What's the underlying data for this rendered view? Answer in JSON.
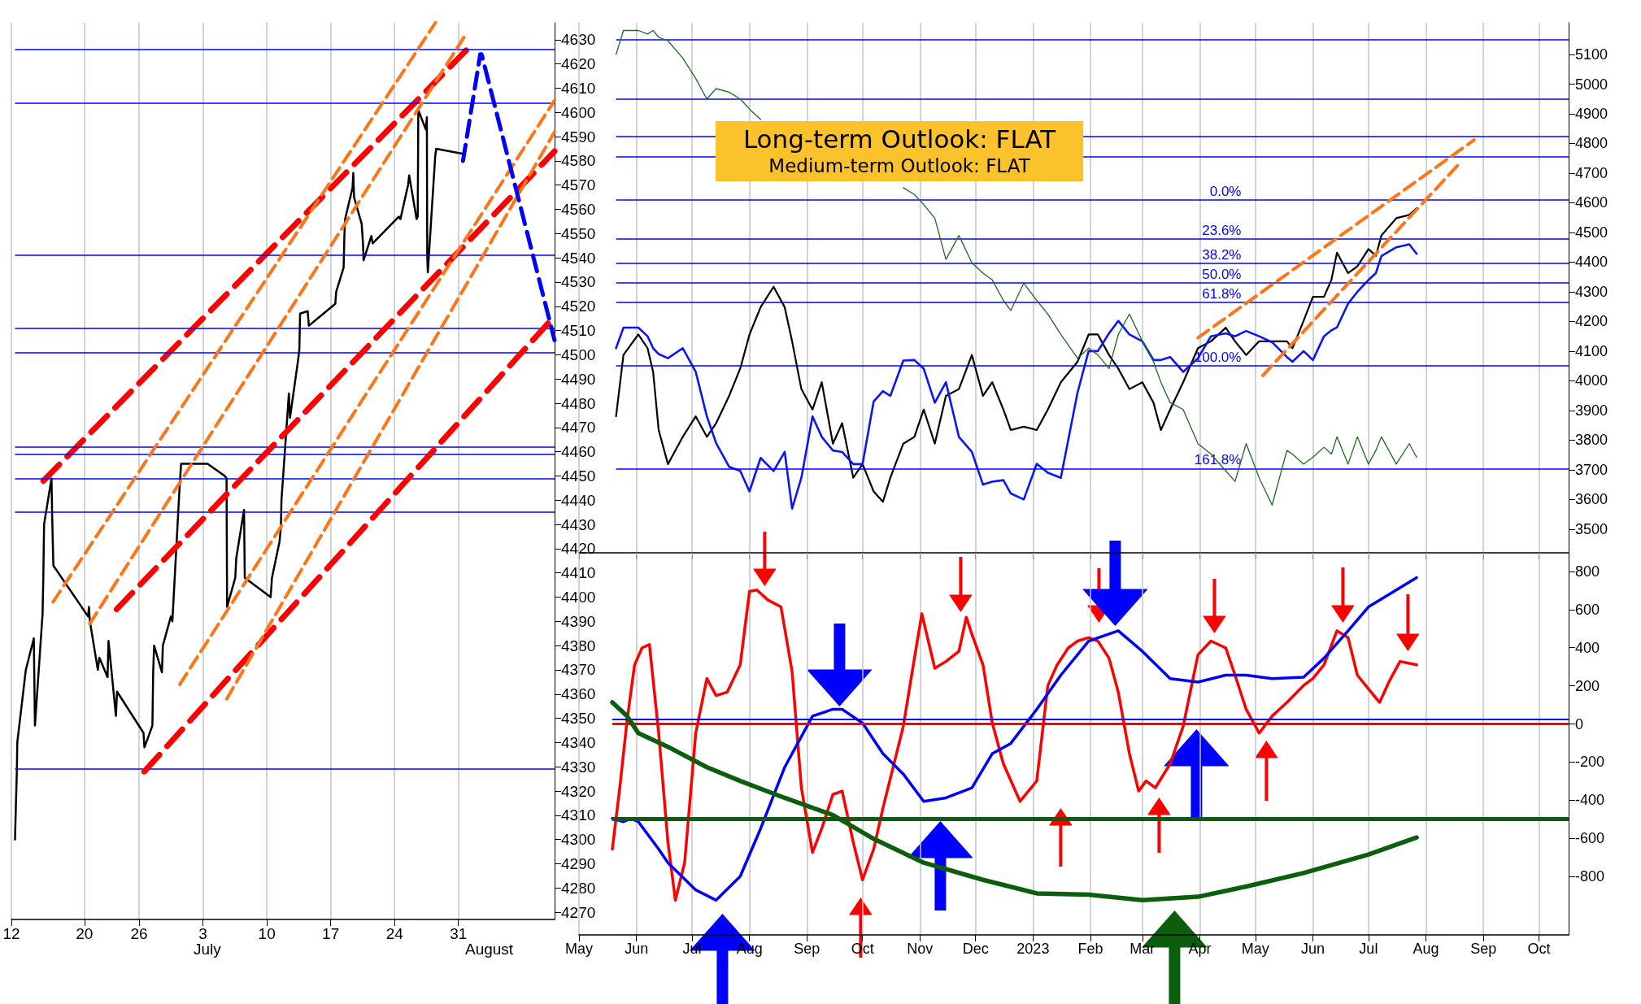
{
  "chart_data": [
    {
      "type": "line",
      "xlim": [
        "2023-06-12",
        "2023-08-10T13:00"
      ],
      "ylim": [
        4267,
        4637
      ],
      "grid": "x",
      "xticks": [
        {
          "value": "2023-06-12",
          "label": "12"
        },
        {
          "value": "2023-06-20",
          "label": "20"
        },
        {
          "value": "2023-06-26",
          "label": "26"
        },
        {
          "value": "2023-07-03",
          "label": "3"
        },
        {
          "value": "2023-07-10",
          "label": "10"
        },
        {
          "value": "2023-07-17",
          "label": "17"
        },
        {
          "value": "2023-07-24",
          "label": "24"
        },
        {
          "value": "2023-07-31",
          "label": "31"
        }
      ],
      "yticks": [
        4270,
        4280,
        4290,
        4300,
        4310,
        4320,
        4330,
        4340,
        4350,
        4360,
        4370,
        4380,
        4390,
        4400,
        4410,
        4420,
        4430,
        4440,
        4450,
        4460,
        4470,
        4480,
        4490,
        4500,
        4510,
        4520,
        4530,
        4540,
        4550,
        4560,
        4570,
        4580,
        4590,
        4600,
        4610,
        4620,
        4630
      ],
      "annotations": [
        "July",
        "August"
      ],
      "ref_lines": [
        {
          "axis": "y",
          "value": 4626,
          "color": "#0000ff"
        },
        {
          "axis": "y",
          "value": 4604,
          "color": "#0000ff"
        },
        {
          "axis": "y",
          "value": 4541,
          "color": "#0000ff"
        },
        {
          "axis": "y",
          "value": 4511,
          "color": "#0000ff"
        },
        {
          "axis": "y",
          "value": 4501,
          "color": "#0000ff"
        },
        {
          "axis": "y",
          "value": 4462,
          "color": "#0000ff"
        },
        {
          "axis": "y",
          "value": 4459,
          "color": "#0000ff"
        },
        {
          "axis": "y",
          "value": 4449,
          "color": "#0000ff"
        },
        {
          "axis": "y",
          "value": 4435,
          "color": "#0000ff"
        },
        {
          "axis": "y",
          "value": 4329,
          "color": "#0000ff"
        }
      ],
      "series": [
        {
          "color": "#000000",
          "x": [
            "2023-06-12T09:30",
            "2023-06-12T11:30",
            "2023-06-12T14:30",
            "2023-06-12T15:30",
            "2023-06-13T09:30",
            "2023-06-13T14:00",
            "2023-06-14T11:00",
            "2023-06-14T14:00",
            "2023-06-15T10:00",
            "2023-06-15T12:00",
            "2023-06-15T14:00",
            "2023-06-16T09:30",
            "2023-06-16T11:30",
            "2023-06-16T14:30",
            "2023-06-20T10:00",
            "2023-06-20T12:00",
            "2023-06-20T14:30",
            "2023-06-21T11:30",
            "2023-06-21T15:30",
            "2023-06-22T13:00",
            "2023-06-22T15:30",
            "2023-06-23T11:00",
            "2023-06-23T14:00",
            "2023-06-26T11:30",
            "2023-06-26T14:00",
            "2023-06-27T11:00",
            "2023-06-27T13:00",
            "2023-06-27T15:30",
            "2023-06-28T12:00",
            "2023-06-28T14:30",
            "2023-06-29T11:30",
            "2023-06-29T15:30",
            "2023-06-30T10:00",
            "2023-06-30T14:30",
            "2023-07-03T12:00",
            "2023-07-05T09:30",
            "2023-07-05T14:00",
            "2023-07-05T15:30",
            "2023-07-06T13:00",
            "2023-07-06T15:30",
            "2023-07-07T12:00",
            "2023-07-07T14:00",
            "2023-07-10T10:00",
            "2023-07-10T13:30",
            "2023-07-11T09:30",
            "2023-07-11T13:00",
            "2023-07-11T14:30",
            "2023-07-12T10:00",
            "2023-07-12T13:00",
            "2023-07-13T09:30",
            "2023-07-13T13:30",
            "2023-07-13T15:30",
            "2023-07-14T11:30",
            "2023-07-14T14:30",
            "2023-07-17T12:00",
            "2023-07-17T14:30",
            "2023-07-18T10:00",
            "2023-07-18T12:00",
            "2023-07-18T14:00",
            "2023-07-19T09:30",
            "2023-07-19T11:30",
            "2023-07-19T13:30",
            "2023-07-20T09:30",
            "2023-07-20T13:00",
            "2023-07-20T14:30",
            "2023-07-21T11:00",
            "2023-07-21T14:30",
            "2023-07-24T11:30",
            "2023-07-24T15:30",
            "2023-07-25T11:30",
            "2023-07-25T14:30",
            "2023-07-26T10:00",
            "2023-07-26T13:00",
            "2023-07-26T14:30",
            "2023-07-27T10:00",
            "2023-07-27T13:00",
            "2023-07-27T14:00",
            "2023-07-27T15:30",
            "2023-07-28T11:00",
            "2023-07-28T13:30",
            "2023-07-31T10:00"
          ],
          "values": [
            4300,
            4312,
            4329,
            4340,
            4364,
            4370,
            4383,
            4347,
            4393,
            4408,
            4430,
            4449,
            4432,
            4413,
            4392,
            4396,
            4390,
            4370,
            4375,
            4367,
            4382,
            4351,
            4361,
            4344,
            4338,
            4347,
            4369,
            4380,
            4369,
            4380,
            4392,
            4390,
            4444,
            4455,
            4455,
            4450,
            4449,
            4396,
            4408,
            4416,
            4436,
            4408,
            4400,
            4408,
            4423,
            4429,
            4440,
            4484,
            4474,
            4497,
            4502,
            4517,
            4518,
            4512,
            4521,
            4526,
            4536,
            4549,
            4556,
            4569,
            4575,
            4565,
            4554,
            4546,
            4539,
            4549,
            4546,
            4557,
            4556,
            4570,
            4574,
            4556,
            4557,
            4601,
            4593,
            4598,
            4541,
            4534,
            4582,
            4585,
            4583
          ]
        },
        {
          "color": "#ff0000",
          "line_style": "dashed",
          "x": [
            "2023-06-15T12:00",
            "2023-08-01T11:30"
          ],
          "values": [
            4448,
            4628
          ]
        },
        {
          "color": "#ff0000",
          "line_style": "dashed",
          "x": [
            "2023-06-23T13:00",
            "2023-08-10T13:00"
          ],
          "values": [
            4395,
            4584
          ]
        },
        {
          "color": "#ff0000",
          "line_style": "dashed",
          "x": [
            "2023-06-26T13:30",
            "2023-08-10T13:00"
          ],
          "values": [
            4328,
            4516
          ]
        },
        {
          "color": "#ff7518",
          "line_style": "dashed",
          "x": [
            "2023-06-16T13:30",
            "2023-07-28T11:30"
          ],
          "values": [
            4398,
            4637
          ]
        },
        {
          "color": "#ff7518",
          "line_style": "dashed",
          "x": [
            "2023-06-20T14:00",
            "2023-07-31T14:30"
          ],
          "values": [
            4389,
            4631
          ]
        },
        {
          "color": "#ff7518",
          "line_style": "dashed",
          "x": [
            "2023-06-30T11:00",
            "2023-08-10T13:00"
          ],
          "values": [
            4364,
            4605
          ]
        },
        {
          "color": "#ff7518",
          "line_style": "dashed",
          "x": [
            "2023-07-05T14:30",
            "2023-08-10T13:00"
          ],
          "values": [
            4358,
            4592
          ]
        },
        {
          "color": "#0000ff",
          "line_style": "dashed",
          "x": [
            "2023-07-31T12:00",
            "2023-08-02T09:30",
            "2023-08-02T13:00",
            "2023-08-10T13:00"
          ],
          "values": [
            4580,
            4624,
            4624,
            4506
          ]
        }
      ]
    },
    {
      "type": "line",
      "title": "Long-term Outlook: FLAT",
      "subtitle": "Medium-term Outlook: FLAT",
      "xlim": [
        "2022-05-01",
        "2023-10-17"
      ],
      "ylim": [
        3420,
        5207
      ],
      "grid": "x",
      "tick_labels": "y",
      "xticks": [
        {
          "value": "2022-05-01",
          "label": null
        },
        {
          "value": "2022-06-01",
          "label": null
        },
        {
          "value": "2022-07-01",
          "label": null
        },
        {
          "value": "2022-08-01",
          "label": null
        },
        {
          "value": "2022-09-01",
          "label": null
        },
        {
          "value": "2022-10-01",
          "label": null
        },
        {
          "value": "2022-11-01",
          "label": null
        },
        {
          "value": "2022-12-01",
          "label": null
        },
        {
          "value": "2023-01-01",
          "label": null
        },
        {
          "value": "2023-02-01",
          "label": null
        },
        {
          "value": "2023-03-01",
          "label": null
        },
        {
          "value": "2023-04-01",
          "label": null
        },
        {
          "value": "2023-05-01",
          "label": null
        },
        {
          "value": "2023-06-01",
          "label": null
        },
        {
          "value": "2023-07-01",
          "label": null
        },
        {
          "value": "2023-08-01",
          "label": null
        },
        {
          "value": "2023-09-01",
          "label": null
        },
        {
          "value": "2023-10-01",
          "label": null
        }
      ],
      "yticks": [
        3500,
        3600,
        3700,
        3800,
        3900,
        4000,
        4100,
        4200,
        4300,
        4400,
        4500,
        4600,
        4700,
        4800,
        4900,
        5000,
        5100
      ],
      "annotations": [
        {
          "text": "0.0%",
          "x": "2023-04-26",
          "y": 4610
        },
        {
          "text": "23.6%",
          "x": "2023-04-26",
          "y": 4478
        },
        {
          "text": "38.2%",
          "x": "2023-04-26",
          "y": 4396
        },
        {
          "text": "50.0%",
          "x": "2023-04-26",
          "y": 4330
        },
        {
          "text": "61.8%",
          "x": "2023-04-26",
          "y": 4264
        },
        {
          "text": "100.0%",
          "x": "2023-04-26",
          "y": 4050
        },
        {
          "text": "161.8%",
          "x": "2023-04-26",
          "y": 3704
        }
      ],
      "ref_lines": [
        {
          "axis": "y",
          "value": 5150,
          "color": "#0000ff"
        },
        {
          "axis": "y",
          "value": 4950,
          "color": "#0000ff"
        },
        {
          "axis": "y",
          "value": 4825,
          "color": "#0000ff"
        },
        {
          "axis": "y",
          "value": 4755,
          "color": "#0000ff"
        },
        {
          "axis": "y",
          "value": 4610,
          "color": "#0000ff"
        },
        {
          "axis": "y",
          "value": 4478,
          "color": "#0000ff"
        },
        {
          "axis": "y",
          "value": 4396,
          "color": "#0000ff"
        },
        {
          "axis": "y",
          "value": 4330,
          "color": "#0000ff"
        },
        {
          "axis": "y",
          "value": 4264,
          "color": "#0000ff"
        },
        {
          "axis": "y",
          "value": 4050,
          "color": "#0000ff"
        },
        {
          "axis": "y",
          "value": 3704,
          "color": "#0000ff"
        }
      ],
      "series": [
        {
          "color": "#000000",
          "x": [
            "2022-05-21",
            "2022-05-25",
            "2022-06-02",
            "2022-06-07",
            "2022-06-10",
            "2022-06-13",
            "2022-06-18",
            "2022-06-26",
            "2022-07-03",
            "2022-07-09",
            "2022-07-14",
            "2022-07-21",
            "2022-07-27",
            "2022-08-01",
            "2022-08-07",
            "2022-08-14",
            "2022-08-20",
            "2022-08-24",
            "2022-08-29",
            "2022-09-04",
            "2022-09-09",
            "2022-09-15",
            "2022-09-20",
            "2022-09-26",
            "2022-10-01",
            "2022-10-07",
            "2022-10-12",
            "2022-10-16",
            "2022-10-23",
            "2022-10-29",
            "2022-11-03",
            "2022-11-09",
            "2022-11-15",
            "2022-11-22",
            "2022-11-29",
            "2022-12-05",
            "2022-12-10",
            "2022-12-16",
            "2022-12-20",
            "2022-12-27",
            "2023-01-03",
            "2023-01-09",
            "2023-01-16",
            "2023-01-25",
            "2023-01-31",
            "2023-02-05",
            "2023-02-11",
            "2023-02-16",
            "2023-02-22",
            "2023-03-01",
            "2023-03-07",
            "2023-03-11",
            "2023-03-16",
            "2023-03-23",
            "2023-03-31",
            "2023-04-07",
            "2023-04-15",
            "2023-04-20",
            "2023-04-26",
            "2023-05-03",
            "2023-05-10",
            "2023-05-18",
            "2023-05-21",
            "2023-05-27",
            "2023-06-01",
            "2023-06-07",
            "2023-06-11",
            "2023-06-14",
            "2023-06-20",
            "2023-06-25",
            "2023-07-01",
            "2023-07-05",
            "2023-07-08",
            "2023-07-16",
            "2023-07-23",
            "2023-07-27"
          ],
          "values": [
            3880,
            4087,
            4156,
            4110,
            4030,
            3834,
            3719,
            3811,
            3880,
            3811,
            3857,
            3949,
            4041,
            4156,
            4248,
            4317,
            4248,
            4133,
            3972,
            3903,
            3995,
            3788,
            3857,
            3673,
            3719,
            3627,
            3592,
            3673,
            3788,
            3811,
            3903,
            3788,
            3949,
            3972,
            4087,
            3949,
            3995,
            3903,
            3834,
            3845,
            3834,
            3903,
            3995,
            4064,
            4156,
            4156,
            4087,
            4041,
            3972,
            3995,
            3926,
            3834,
            3903,
            3995,
            4110,
            4133,
            4179,
            4133,
            4087,
            4133,
            4133,
            4133,
            4110,
            4202,
            4283,
            4283,
            4340,
            4432,
            4363,
            4386,
            4444,
            4421,
            4490,
            4548,
            4559,
            4582
          ]
        },
        {
          "color": "#0a14ff",
          "x": [
            "2022-05-21",
            "2022-05-25",
            "2022-06-02",
            "2022-06-07",
            "2022-06-10",
            "2022-06-13",
            "2022-06-18",
            "2022-06-26",
            "2022-07-03",
            "2022-07-09",
            "2022-07-14",
            "2022-07-21",
            "2022-07-27",
            "2022-08-01",
            "2022-08-07",
            "2022-08-14",
            "2022-08-20",
            "2022-08-24",
            "2022-08-29",
            "2022-09-04",
            "2022-09-09",
            "2022-09-15",
            "2022-09-20",
            "2022-09-26",
            "2022-10-01",
            "2022-10-07",
            "2022-10-12",
            "2022-10-16",
            "2022-10-23",
            "2022-10-29",
            "2022-11-03",
            "2022-11-09",
            "2022-11-15",
            "2022-11-22",
            "2022-11-29",
            "2022-12-05",
            "2022-12-10",
            "2022-12-16",
            "2022-12-20",
            "2022-12-27",
            "2023-01-03",
            "2023-01-09",
            "2023-01-16",
            "2023-01-25",
            "2023-01-31",
            "2023-02-05",
            "2023-02-11",
            "2023-02-16",
            "2023-02-22",
            "2023-03-01",
            "2023-03-07",
            "2023-03-11",
            "2023-03-16",
            "2023-03-23",
            "2023-03-31",
            "2023-04-07",
            "2023-04-15",
            "2023-04-20",
            "2023-04-26",
            "2023-05-03",
            "2023-05-10",
            "2023-05-18",
            "2023-05-21",
            "2023-05-27",
            "2023-06-01",
            "2023-06-07",
            "2023-06-11",
            "2023-06-14",
            "2023-06-20",
            "2023-06-25",
            "2023-07-01",
            "2023-07-05",
            "2023-07-08",
            "2023-07-16",
            "2023-07-23",
            "2023-07-27"
          ],
          "values": [
            4110,
            4179,
            4179,
            4150,
            4110,
            4090,
            4076,
            4110,
            4030,
            3880,
            3790,
            3710,
            3696,
            3627,
            3740,
            3696,
            3760,
            3569,
            3673,
            3880,
            3811,
            3765,
            3760,
            3719,
            3719,
            3930,
            3965,
            3949,
            4068,
            4070,
            4041,
            3926,
            3995,
            3811,
            3760,
            3650,
            3660,
            3665,
            3620,
            3600,
            3720,
            3690,
            3673,
            3960,
            4100,
            4100,
            4160,
            4202,
            4156,
            4133,
            4070,
            4070,
            4080,
            4030,
            4076,
            4150,
            4160,
            4150,
            4168,
            4150,
            4130,
            4080,
            4064,
            4100,
            4070,
            4150,
            4170,
            4180,
            4260,
            4300,
            4340,
            4363,
            4421,
            4450,
            4460,
            4428
          ]
        },
        {
          "color": "#1e6b1e",
          "x": [
            "2022-05-21",
            "2022-05-25",
            "2022-06-02",
            "2022-06-07",
            "2022-06-10",
            "2022-06-13",
            "2022-06-18",
            "2022-06-26",
            "2022-07-03",
            "2022-07-09",
            "2022-07-14",
            "2022-07-21",
            "2022-07-27",
            "2022-08-01",
            "2022-08-07",
            "2022-08-14",
            "2022-08-20",
            "2022-08-24",
            "2022-08-29",
            "2022-09-04",
            "2022-09-09",
            "2022-09-15",
            "2022-09-20",
            "2022-09-26",
            "2022-10-01",
            "2022-10-07",
            "2022-10-12",
            "2022-10-16",
            "2022-10-23",
            "2022-10-29",
            "2022-11-03",
            "2022-11-09",
            "2022-11-15",
            "2022-11-22",
            "2022-11-29",
            "2022-12-05",
            "2022-12-10",
            "2022-12-16",
            "2022-12-20",
            "2022-12-27",
            "2023-01-03",
            "2023-01-09",
            "2023-01-16",
            "2023-01-25",
            "2023-01-31",
            "2023-02-05",
            "2023-02-11",
            "2023-02-16",
            "2023-02-22",
            "2023-03-01",
            "2023-03-07",
            "2023-03-11",
            "2023-03-16",
            "2023-03-23",
            "2023-03-31",
            "2023-04-07",
            "2023-04-15",
            "2023-04-20",
            "2023-04-26",
            "2023-05-03",
            "2023-05-10",
            "2023-05-18",
            "2023-05-21",
            "2023-05-27",
            "2023-06-01",
            "2023-06-07",
            "2023-06-11",
            "2023-06-14",
            "2023-06-20",
            "2023-06-25",
            "2023-07-01",
            "2023-07-05",
            "2023-07-08",
            "2023-07-16",
            "2023-07-23",
            "2023-07-27"
          ],
          "values": [
            5100,
            5181,
            5181,
            5169,
            5181,
            5158,
            5146,
            5088,
            5019,
            4950,
            4985,
            4973,
            4950,
            4916,
            4881,
            null,
            null,
            null,
            null,
            null,
            null,
            null,
            null,
            null,
            null,
            null,
            null,
            null,
            4651,
            4628,
            4594,
            4548,
            4409,
            4490,
            4398,
            4363,
            4340,
            4271,
            4237,
            4329,
            4271,
            4225,
            4156,
            4076,
            4110,
            4087,
            4041,
            4156,
            4225,
            4133,
            4064,
            3995,
            3926,
            3903,
            3788,
            3753,
            3696,
            3661,
            3788,
            3673,
            3581,
            3765,
            3753,
            3719,
            3742,
            3776,
            3753,
            3811,
            3719,
            3811,
            3719,
            3765,
            3811,
            3719,
            3788,
            3742
          ]
        },
        {
          "color": "#ff7518",
          "line_style": "dashed",
          "x": [
            "2023-03-31",
            "2023-08-27"
          ],
          "values": [
            4145,
            4812
          ]
        },
        {
          "color": "#ff7518",
          "line_style": "dashed",
          "x": [
            "2023-05-05",
            "2023-08-19"
          ],
          "values": [
            4018,
            4732
          ]
        }
      ]
    },
    {
      "type": "line",
      "xlim": [
        "2022-05-01",
        "2023-10-17"
      ],
      "ylim": [
        -1107,
        898
      ],
      "grid": "x",
      "xticks": [
        {
          "value": "2022-05-01",
          "label": "May"
        },
        {
          "value": "2022-06-01",
          "label": "Jun"
        },
        {
          "value": "2022-07-01",
          "label": "Jul"
        },
        {
          "value": "2022-08-01",
          "label": "Aug"
        },
        {
          "value": "2022-09-01",
          "label": "Sep"
        },
        {
          "value": "2022-10-01",
          "label": "Oct"
        },
        {
          "value": "2022-11-01",
          "label": "Nov"
        },
        {
          "value": "2022-12-01",
          "label": "Dec"
        },
        {
          "value": "2023-01-01",
          "label": "2023"
        },
        {
          "value": "2023-02-01",
          "label": "Feb"
        },
        {
          "value": "2023-03-01",
          "label": "Mar"
        },
        {
          "value": "2023-04-01",
          "label": "Apr"
        },
        {
          "value": "2023-05-01",
          "label": "May"
        },
        {
          "value": "2023-06-01",
          "label": "Jun"
        },
        {
          "value": "2023-07-01",
          "label": "Jul"
        },
        {
          "value": "2023-08-01",
          "label": "Aug"
        },
        {
          "value": "2023-09-01",
          "label": "Sep"
        },
        {
          "value": "2023-10-01",
          "label": "Oct"
        }
      ],
      "yticks": [
        -800,
        -600,
        -400,
        -200,
        0,
        200,
        400,
        600,
        800
      ],
      "ref_lines": [
        {
          "axis": "y",
          "value": 25,
          "color": "#0000ff"
        },
        {
          "axis": "y",
          "value": 0,
          "color": "#ff0000"
        },
        {
          "axis": "y",
          "value": -500,
          "color": "#0b5e0b"
        }
      ],
      "series": [
        {
          "color": "#ff0000",
          "x": [
            "2022-05-19",
            "2022-05-23",
            "2022-05-27",
            "2022-05-31",
            "2022-06-04",
            "2022-06-08",
            "2022-06-13",
            "2022-06-18",
            "2022-06-22",
            "2022-06-27",
            "2022-07-03",
            "2022-07-09",
            "2022-07-14",
            "2022-07-20",
            "2022-07-27",
            "2022-08-01",
            "2022-08-05",
            "2022-08-11",
            "2022-08-18",
            "2022-08-24",
            "2022-08-29",
            "2022-09-04",
            "2022-09-09",
            "2022-09-15",
            "2022-09-20",
            "2022-09-26",
            "2022-10-01",
            "2022-10-07",
            "2022-10-12",
            "2022-10-23",
            "2022-10-29",
            "2022-11-02",
            "2022-11-09",
            "2022-11-15",
            "2022-11-22",
            "2022-11-26",
            "2022-11-29",
            "2022-12-05",
            "2022-12-10",
            "2022-12-16",
            "2022-12-25",
            "2023-01-03",
            "2023-01-09",
            "2023-01-14",
            "2023-01-20",
            "2023-01-25",
            "2023-01-31",
            "2023-02-05",
            "2023-02-11",
            "2023-02-16",
            "2023-02-22",
            "2023-02-27",
            "2023-03-03",
            "2023-03-08",
            "2023-03-16",
            "2023-03-23",
            "2023-03-31",
            "2023-04-07",
            "2023-04-15",
            "2023-04-20",
            "2023-04-26",
            "2023-05-03",
            "2023-05-10",
            "2023-05-18",
            "2023-05-27",
            "2023-06-01",
            "2023-06-07",
            "2023-06-14",
            "2023-06-20",
            "2023-06-25",
            "2023-07-01",
            "2023-07-07",
            "2023-07-12",
            "2023-07-18",
            "2023-07-27"
          ],
          "values": [
            -657,
            -335,
            23,
            310,
            399,
            417,
            -48,
            -621,
            -925,
            -728,
            -48,
            238,
            149,
            167,
            310,
            696,
            703,
            650,
            614,
            274,
            -335,
            -675,
            -549,
            -370,
            -352,
            -621,
            -818,
            -657,
            -442,
            -12,
            345,
            578,
            292,
            328,
            381,
            560,
            471,
            310,
            5,
            -209,
            -406,
            -299,
            202,
            310,
            399,
            435,
            453,
            435,
            345,
            167,
            -156,
            -352,
            -299,
            -335,
            -209,
            -12,
            363,
            435,
            399,
            256,
            77,
            -48,
            41,
            113,
            202,
            238,
            310,
            489,
            453,
            256,
            184,
            113,
            220,
            328,
            310
          ]
        },
        {
          "color": "#0000ff",
          "x": [
            "2022-05-19",
            "2022-05-25",
            "2022-05-29",
            "2022-06-02",
            "2022-06-13",
            "2022-06-18",
            "2022-07-03",
            "2022-07-14",
            "2022-07-27",
            "2022-08-07",
            "2022-08-20",
            "2022-09-04",
            "2022-09-15",
            "2022-09-20",
            "2022-10-01",
            "2022-10-12",
            "2022-10-23",
            "2022-11-03",
            "2022-11-15",
            "2022-11-29",
            "2022-12-10",
            "2022-12-20",
            "2023-01-03",
            "2023-01-16",
            "2023-01-31",
            "2023-02-16",
            "2023-03-01",
            "2023-03-16",
            "2023-03-31",
            "2023-04-15",
            "2023-04-26",
            "2023-05-10",
            "2023-05-27",
            "2023-06-07",
            "2023-06-20",
            "2023-07-01",
            "2023-07-16",
            "2023-07-27"
          ],
          "values": [
            -496,
            -513,
            -496,
            -513,
            -657,
            -728,
            -871,
            -925,
            -800,
            -549,
            -227,
            41,
            77,
            77,
            5,
            -156,
            -263,
            -406,
            -388,
            -335,
            -156,
            -102,
            77,
            256,
            435,
            489,
            381,
            238,
            220,
            256,
            256,
            238,
            245,
            345,
            489,
            614,
            703,
            768
          ]
        },
        {
          "color": "#0b5e0b",
          "x": [
            "2022-05-19",
            "2022-05-27",
            "2022-06-02",
            "2022-06-18",
            "2022-07-09",
            "2022-07-27",
            "2022-08-20",
            "2022-09-15",
            "2022-10-07",
            "2022-11-03",
            "2022-12-05",
            "2023-01-03",
            "2023-01-31",
            "2023-03-01",
            "2023-03-31",
            "2023-04-26",
            "2023-05-27",
            "2023-07-01",
            "2023-07-27"
          ],
          "values": [
            113,
            41,
            -48,
            -120,
            -227,
            -299,
            -388,
            -478,
            -603,
            -728,
            -818,
            -889,
            -896,
            -925,
            -907,
            -853,
            -782,
            -685,
            -596
          ]
        }
      ]
    }
  ]
}
